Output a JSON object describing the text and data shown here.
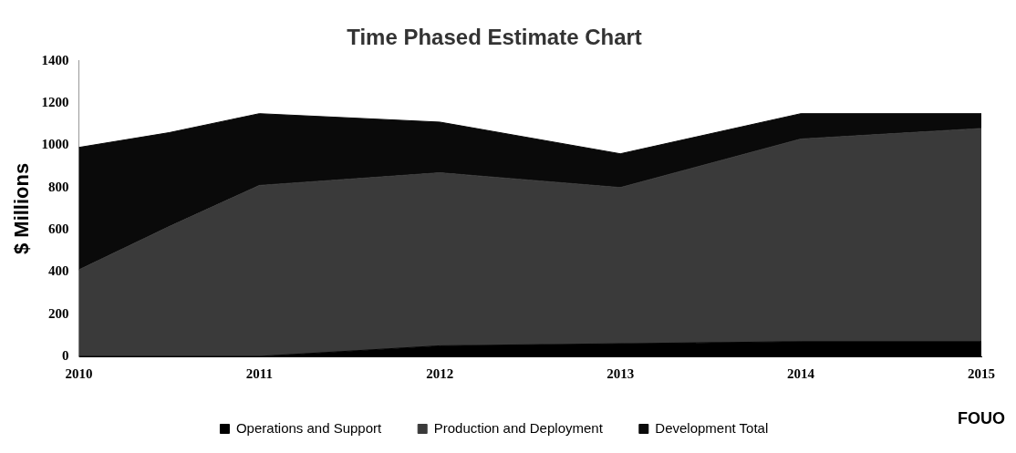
{
  "chart_data": {
    "type": "area",
    "title": "Time Phased Estimate Chart",
    "ylabel": "$ Millions",
    "stacked": true,
    "x": [
      2010,
      2010.5,
      2011,
      2012,
      2013,
      2014,
      2015
    ],
    "series": [
      {
        "name": "Operations and Support",
        "color": "#000000",
        "values": [
          0,
          0,
          0,
          50,
          60,
          70,
          70
        ]
      },
      {
        "name": "Production and Deployment",
        "color": "#3a3a3a",
        "values": [
          410,
          615,
          810,
          820,
          740,
          960,
          1010
        ]
      },
      {
        "name": "Development Total",
        "color": "#0a0a0a",
        "values": [
          580,
          445,
          340,
          240,
          160,
          120,
          70
        ]
      }
    ],
    "xlim": [
      2010,
      2015
    ],
    "xticks": [
      2010,
      2011,
      2012,
      2013,
      2014,
      2015
    ],
    "ylim": [
      0,
      1400
    ],
    "yticks": [
      0,
      200,
      400,
      600,
      800,
      1000,
      1200,
      1400
    ],
    "grid": false,
    "legend": "bottom",
    "annotations": [
      "FOUO"
    ]
  }
}
